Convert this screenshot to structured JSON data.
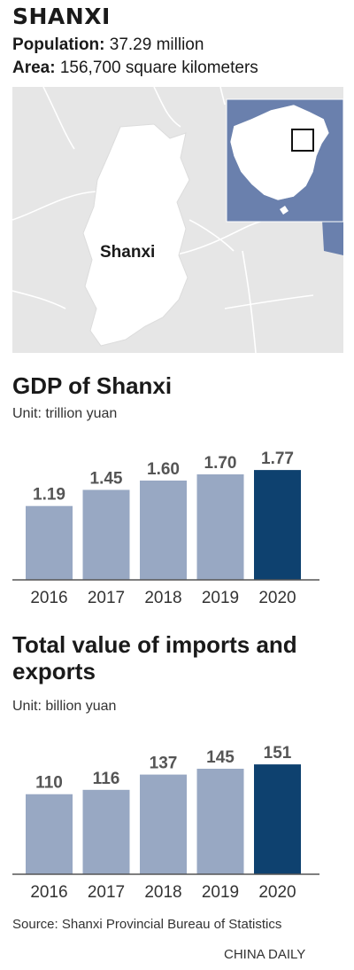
{
  "header": {
    "title": "SHANXI",
    "population_label": "Population:",
    "population_value": "37.29 million",
    "area_label": "Area:",
    "area_value": "156,700 square kilometers"
  },
  "map": {
    "region_label": "Shanxi",
    "colors": {
      "land": "#e6e6e6",
      "region": "#ffffff",
      "inset_bg": "#6a80ad",
      "inset_land": "#ffffff",
      "sea": "#6a80ad"
    }
  },
  "chart_data": [
    {
      "type": "bar",
      "title": "GDP of Shanxi",
      "unit_label": "Unit: trillion yuan",
      "categories": [
        "2016",
        "2017",
        "2018",
        "2019",
        "2020"
      ],
      "values": [
        1.19,
        1.45,
        1.6,
        1.7,
        1.77
      ],
      "value_labels": [
        "1.19",
        "1.45",
        "1.60",
        "1.70",
        "1.77"
      ],
      "ylim": [
        0,
        2.2
      ],
      "colors": {
        "bar": "#98a8c3",
        "highlight": "#0e416f",
        "highlight_index": 4
      }
    },
    {
      "type": "bar",
      "title": "Total value of imports and exports",
      "unit_label": "Unit: billion yuan",
      "categories": [
        "2016",
        "2017",
        "2018",
        "2019",
        "2020"
      ],
      "values": [
        110,
        116,
        137,
        145,
        151
      ],
      "value_labels": [
        "110",
        "116",
        "137",
        "145",
        "151"
      ],
      "ylim": [
        0,
        195
      ],
      "colors": {
        "bar": "#98a8c3",
        "highlight": "#0e416f",
        "highlight_index": 4
      }
    }
  ],
  "footer": {
    "source": "Source: Shanxi Provincial Bureau of Statistics",
    "credit": "CHINA DAILY"
  }
}
